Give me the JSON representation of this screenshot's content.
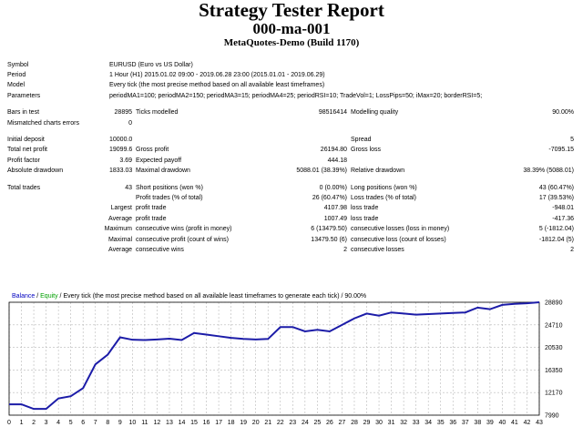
{
  "header": {
    "title": "Strategy Tester Report",
    "subtitle": "000-ma-001",
    "build": "MetaQuotes-Demo (Build 1170)"
  },
  "info": {
    "symbol_label": "Symbol",
    "symbol_value": "EURUSD (Euro vs US Dollar)",
    "period_label": "Period",
    "period_value": "1 Hour (H1) 2015.01.02 09:00 - 2019.06.28 23:00 (2015.01.01 - 2019.06.29)",
    "model_label": "Model",
    "model_value": "Every tick (the most precise method based on all available least timeframes)",
    "params_label": "Parameters",
    "params_value": "periodMA1=100; periodMA2=150; periodMA3=15; periodMA4=25; periodRSI=10; TradeVol=1; LossPips=50; iMax=20; borderRSI=5;"
  },
  "bars": {
    "bars_label": "Bars in test",
    "bars_value": "28895",
    "ticks_label": "Ticks modelled",
    "ticks_value": "98516414",
    "quality_label": "Modelling quality",
    "quality_value": "90.00%",
    "mismatch_label": "Mismatched charts errors",
    "mismatch_value": "0"
  },
  "results": {
    "initial_deposit_label": "Initial deposit",
    "initial_deposit_value": "10000.00",
    "spread_label": "Spread",
    "spread_value": "5",
    "net_profit_label": "Total net profit",
    "net_profit_value": "19099.65",
    "gross_profit_label": "Gross profit",
    "gross_profit_value": "26194.80",
    "gross_loss_label": "Gross loss",
    "gross_loss_value": "-7095.15",
    "profit_factor_label": "Profit factor",
    "profit_factor_value": "3.69",
    "expected_payoff_label": "Expected payoff",
    "expected_payoff_value": "444.18",
    "abs_dd_label": "Absolute drawdown",
    "abs_dd_value": "1833.03",
    "max_dd_label": "Maximal drawdown",
    "max_dd_value": "5088.01 (38.39%)",
    "rel_dd_label": "Relative drawdown",
    "rel_dd_value": "38.39% (5088.01)"
  },
  "trades": {
    "total_label": "Total trades",
    "total_value": "43",
    "short_label": "Short positions (won %)",
    "short_value": "0 (0.00%)",
    "long_label": "Long positions (won %)",
    "long_value": "43 (60.47%)",
    "profit_trades_label": "Profit trades (% of total)",
    "profit_trades_value": "26 (60.47%)",
    "loss_trades_label": "Loss trades (% of total)",
    "loss_trades_value": "17 (39.53%)",
    "largest_label": "Largest",
    "largest_profit_label": "profit trade",
    "largest_profit_value": "4107.98",
    "largest_loss_label": "loss trade",
    "largest_loss_value": "-948.01",
    "average_label": "Average",
    "average_profit_label": "profit trade",
    "average_profit_value": "1007.49",
    "average_loss_label": "loss trade",
    "average_loss_value": "-417.36",
    "maximum_label": "Maximum",
    "max_cons_wins_label": "consecutive wins (profit in money)",
    "max_cons_wins_value": "6 (13479.50)",
    "max_cons_losses_label": "consecutive losses (loss in money)",
    "max_cons_losses_value": "5 (-1812.04)",
    "maximal_label": "Maximal",
    "maximal_cons_profit_label": "consecutive profit (count of wins)",
    "maximal_cons_profit_value": "13479.50 (6)",
    "maximal_cons_loss_label": "consecutive loss (count of losses)",
    "maximal_cons_loss_value": "-1812.04 (5)",
    "avg_label": "Average",
    "avg_cons_wins_label": "consecutive wins",
    "avg_cons_wins_value": "2",
    "avg_cons_losses_label": "consecutive losses",
    "avg_cons_losses_value": "2"
  },
  "legend": {
    "balance": "Balance",
    "sep1": " / ",
    "equity": "Equity",
    "rest": " / Every tick (the most precise method based on all available least timeframes to generate each tick) / 90.00%"
  },
  "chart_data": {
    "type": "line",
    "x": [
      0,
      1,
      2,
      3,
      4,
      5,
      6,
      7,
      8,
      9,
      10,
      11,
      12,
      13,
      14,
      15,
      16,
      17,
      18,
      19,
      20,
      21,
      22,
      23,
      24,
      25,
      26,
      27,
      28,
      29,
      30,
      31,
      32,
      33,
      34,
      35,
      36,
      37,
      38,
      39,
      40,
      41,
      42,
      43
    ],
    "series": [
      {
        "name": "Balance",
        "values": [
          10000,
          10000,
          9140,
          9140,
          11080,
          11500,
          13000,
          17400,
          19200,
          22400,
          21950,
          21900,
          22000,
          22150,
          21900,
          23200,
          22900,
          22600,
          22300,
          22100,
          22000,
          22100,
          24300,
          24300,
          23500,
          23800,
          23500,
          24700,
          25900,
          26800,
          26400,
          27000,
          26800,
          26600,
          26700,
          26800,
          26900,
          27000,
          27900,
          27600,
          28400,
          28600,
          28700,
          28890
        ]
      }
    ],
    "x_ticks": [
      "0",
      "1",
      "2",
      "3",
      "4",
      "5",
      "6",
      "7",
      "8",
      "9",
      "10",
      "11",
      "12",
      "13",
      "14",
      "15",
      "16",
      "17",
      "18",
      "19",
      "20",
      "21",
      "22",
      "23",
      "24",
      "25",
      "26",
      "27",
      "28",
      "29",
      "30",
      "31",
      "32",
      "33",
      "34",
      "35",
      "36",
      "37",
      "38",
      "39",
      "40",
      "41",
      "42",
      "43"
    ],
    "y_ticks": [
      "28890",
      "24710",
      "20530",
      "16350",
      "12170",
      "7990"
    ],
    "ylim": [
      7990,
      28890
    ],
    "xlim": [
      0,
      43
    ],
    "grid": true,
    "colors": {
      "balance": "#1c1ca8",
      "equity": "#00a000",
      "grid": "#b8b8b8"
    }
  }
}
